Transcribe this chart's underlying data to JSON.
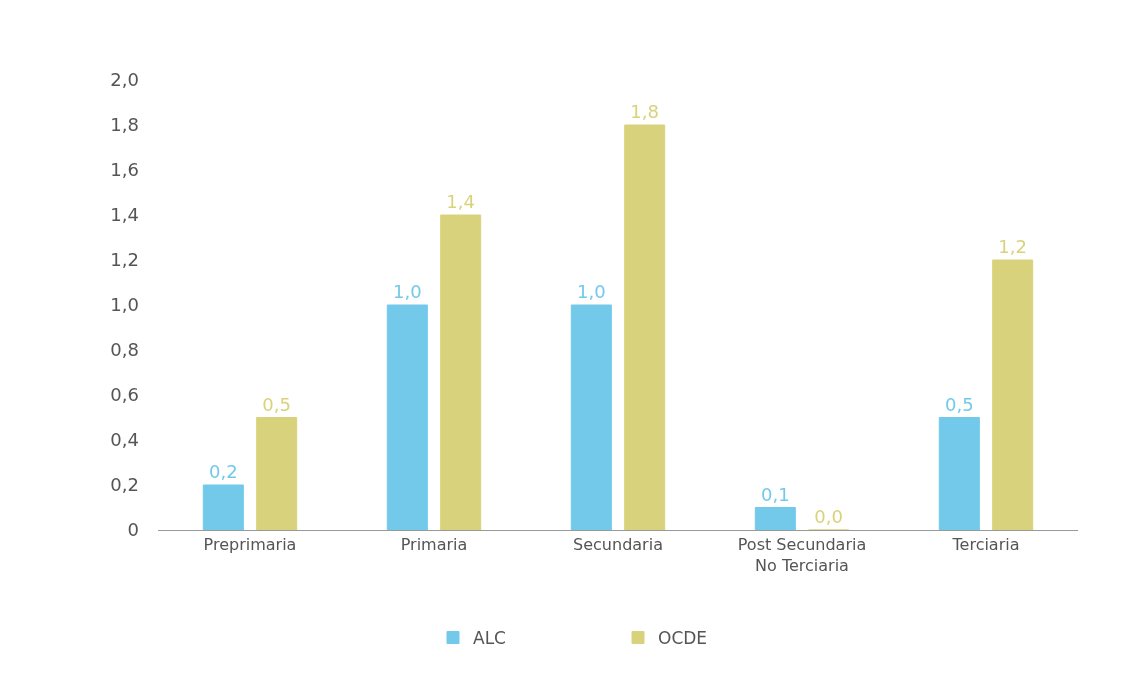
{
  "chart_data": {
    "type": "bar",
    "categories": [
      "Preprimaria",
      "Primaria",
      "Secundaria",
      "Post Secundaria\nNo Terciaria",
      "Terciaria"
    ],
    "series": [
      {
        "name": "ALC",
        "color": "#72c9ea",
        "values": [
          0.2,
          1.0,
          1.0,
          0.1,
          0.5
        ],
        "value_labels": [
          "0,2",
          "1,0",
          "1,0",
          "0,1",
          "0,5"
        ]
      },
      {
        "name": "OCDE",
        "color": "#d9d27c",
        "values": [
          0.5,
          1.4,
          1.8,
          0.0,
          1.2
        ],
        "value_labels": [
          "0,5",
          "1,4",
          "1,8",
          "0,0",
          "1,2"
        ]
      }
    ],
    "ylim": [
      0,
      2.0
    ],
    "yticks": [
      0,
      {
        "value": 0.2,
        "label": "0,2"
      },
      {
        "value": 0.4,
        "label": "0,4"
      },
      {
        "value": 0.6,
        "label": "0,6"
      },
      {
        "value": 0.8,
        "label": "0,8"
      },
      {
        "value": 1.0,
        "label": "1,0"
      },
      {
        "value": 1.2,
        "label": "1,2"
      },
      {
        "value": 1.4,
        "label": "1,4"
      },
      {
        "value": 1.6,
        "label": "1,6"
      },
      {
        "value": 1.8,
        "label": "1,8"
      },
      {
        "value": 2.0,
        "label": "2,0"
      }
    ],
    "grid": false,
    "legend": "bottom"
  }
}
